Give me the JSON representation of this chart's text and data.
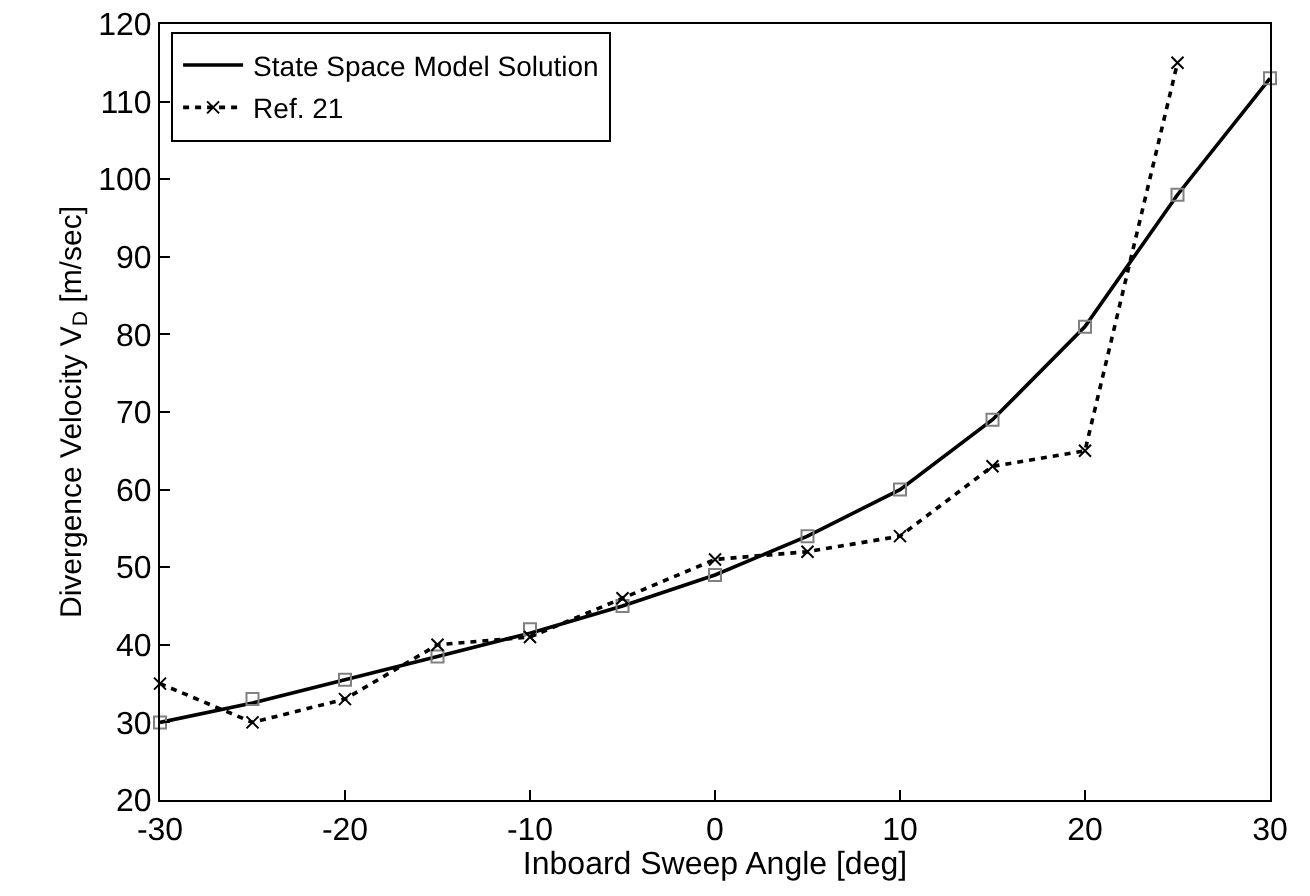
{
  "chart_data": {
    "type": "line",
    "xlabel": "Inboard Sweep Angle [deg]",
    "ylabel": "Divergence Velocity V$_{D}$ [m/sec]",
    "xlim": [
      -30,
      30
    ],
    "xticks": [
      -30,
      -20,
      -10,
      0,
      10,
      20,
      30
    ],
    "ylim": [
      20,
      120
    ],
    "yticks": [
      20,
      30,
      40,
      50,
      60,
      70,
      80,
      90,
      100,
      110,
      120
    ],
    "grid": false,
    "legend": "top left",
    "x": [
      -30,
      -25,
      -20,
      -15,
      -10,
      -5,
      0,
      5,
      10,
      15,
      20,
      25,
      30
    ],
    "series": [
      {
        "name": "State Space Model Solution",
        "color": "#000000",
        "marker": "none",
        "line_style": "solid",
        "values": [
          30,
          32.5,
          35.5,
          38.5,
          41.5,
          45,
          49,
          54,
          60,
          69,
          81,
          98,
          113
        ]
      },
      {
        "color": "#808080",
        "type": "scatter",
        "marker": "square",
        "values": [
          30,
          33,
          35.5,
          38.5,
          42,
          45,
          49,
          54,
          60,
          69,
          81,
          98,
          113
        ]
      },
      {
        "name": "Ref. 21",
        "color": "#000000",
        "marker": "cross",
        "line_style": "dotted",
        "x": [
          -30,
          -25,
          -20,
          -15,
          -10,
          -5,
          0,
          5,
          10,
          15,
          20,
          25
        ],
        "values": [
          35,
          30,
          33,
          40,
          41,
          46,
          51,
          52,
          54,
          63,
          65,
          115
        ]
      }
    ]
  }
}
